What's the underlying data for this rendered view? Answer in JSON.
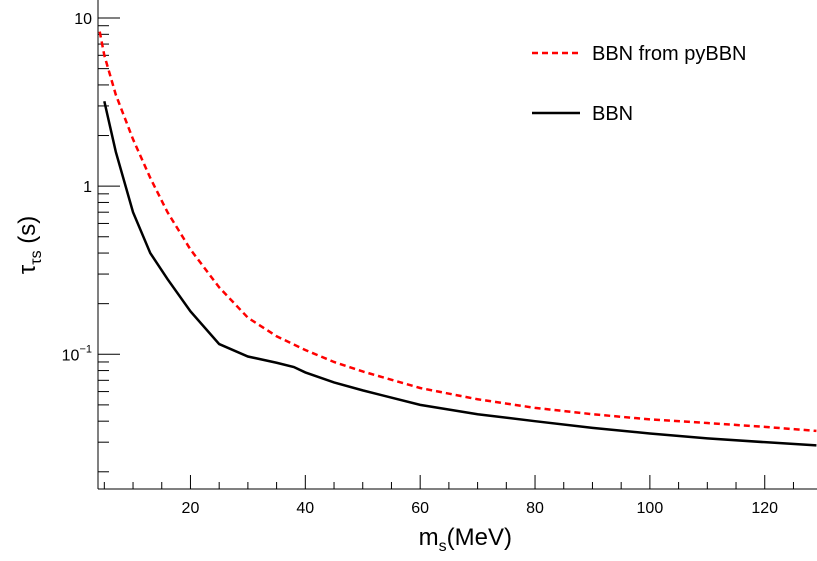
{
  "chart_data": {
    "type": "line",
    "title": "",
    "xlabel": {
      "base": "m",
      "sub": "s",
      "rest": "(MeV)"
    },
    "ylabel": {
      "base": "τ",
      "sub": "τs",
      "rest": " (s)"
    },
    "xlim": [
      3.9,
      129.1
    ],
    "ylim": [
      0.0158,
      12.8
    ],
    "yscale": "log",
    "grid": false,
    "legend_position": "top-right",
    "x_ticks": [
      20,
      40,
      60,
      80,
      100,
      120
    ],
    "x_tick_labels": [
      "20",
      "40",
      "60",
      "80",
      "100",
      "120"
    ],
    "y_ticks": [
      0.1,
      1,
      10
    ],
    "y_tick_labels": [
      {
        "base": "10",
        "sup": "−1"
      },
      {
        "base": "1",
        "sup": ""
      },
      {
        "base": "10",
        "sup": ""
      }
    ],
    "series": [
      {
        "name": "BBN from pyBBN",
        "color": "#ff0000",
        "dash": "dashed",
        "x": [
          4.2,
          5,
          7,
          10,
          13,
          16,
          20,
          25,
          30,
          35,
          40,
          45,
          50,
          60,
          70,
          80,
          90,
          100,
          110,
          120,
          129
        ],
        "y": [
          8.3,
          6.0,
          3.5,
          1.9,
          1.12,
          0.7,
          0.42,
          0.25,
          0.165,
          0.128,
          0.106,
          0.09,
          0.079,
          0.063,
          0.054,
          0.048,
          0.044,
          0.041,
          0.039,
          0.037,
          0.035
        ]
      },
      {
        "name": "BBN",
        "color": "#000000",
        "dash": "solid",
        "x": [
          5,
          7,
          10,
          13,
          16,
          20,
          25,
          30,
          35,
          38,
          40,
          45,
          50,
          60,
          70,
          80,
          90,
          100,
          110,
          120,
          129
        ],
        "y": [
          3.2,
          1.6,
          0.7,
          0.4,
          0.28,
          0.18,
          0.115,
          0.097,
          0.089,
          0.084,
          0.078,
          0.068,
          0.061,
          0.05,
          0.044,
          0.04,
          0.0365,
          0.0338,
          0.0316,
          0.03,
          0.0287
        ]
      }
    ]
  }
}
